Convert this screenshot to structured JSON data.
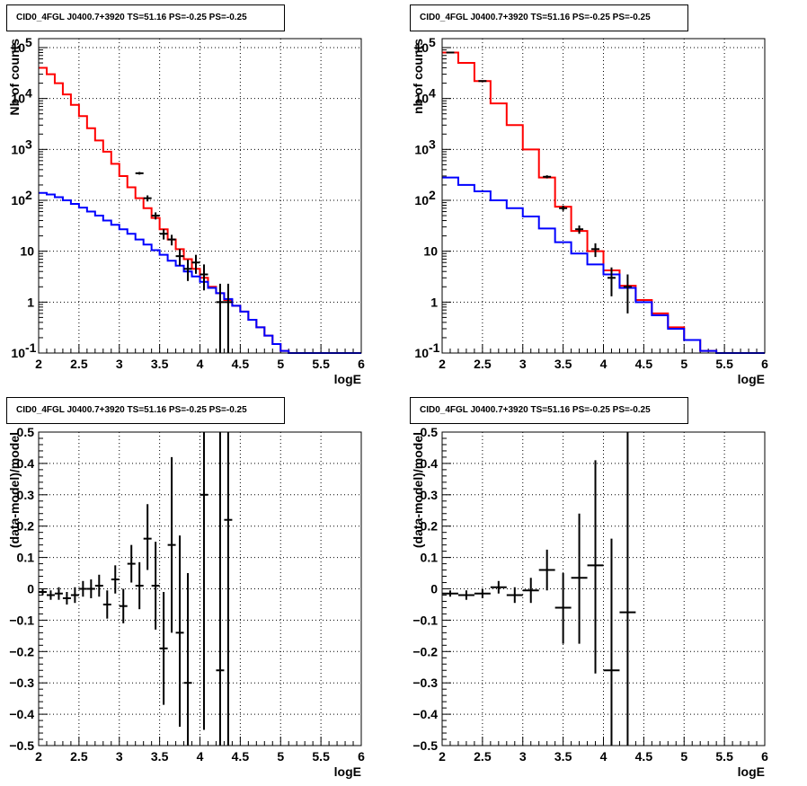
{
  "chart_data": [
    {
      "type": "line",
      "title": "CID0_4FGL J0400.7+3920 TS=51.16 PS=-0.25 PS=-0.25",
      "xlabel": "logE",
      "ylabel": "Nb of counts",
      "log_y": true,
      "xlim": [
        2,
        6
      ],
      "ylim": [
        0.1,
        150000
      ],
      "x_ticks": [
        "2",
        "2.5",
        "3",
        "3.5",
        "4",
        "4.5",
        "5",
        "5.5",
        "6"
      ],
      "y_ticks": [
        {
          "value": 0.1,
          "label": "10",
          "exp": "-1"
        },
        {
          "value": 1,
          "label": "1",
          "exp": ""
        },
        {
          "value": 10,
          "label": "10",
          "exp": ""
        },
        {
          "value": 100,
          "label": "10",
          "exp": "2"
        },
        {
          "value": 1000,
          "label": "10",
          "exp": "3"
        },
        {
          "value": 10000,
          "label": "10",
          "exp": "4"
        },
        {
          "value": 100000,
          "label": "10",
          "exp": "5"
        }
      ],
      "grid": true,
      "bin_edges": [
        2.0,
        2.1,
        2.2,
        2.3,
        2.4,
        2.5,
        2.6,
        2.7,
        2.8,
        2.9,
        3.0,
        3.1,
        3.2,
        3.3,
        3.4,
        3.5,
        3.6,
        3.7,
        3.8,
        3.9,
        4.0,
        4.1,
        4.2,
        4.3,
        4.4,
        4.5,
        4.6,
        4.7,
        4.8,
        4.9,
        5.0,
        5.1,
        5.2,
        5.3,
        5.4,
        5.5,
        5.6,
        5.7,
        5.8,
        5.9,
        6.0
      ],
      "series": [
        {
          "color": "#ff0000",
          "style": "hist",
          "values": [
            40000,
            30000,
            20000,
            12000,
            7500,
            4500,
            2600,
            1500,
            900,
            520,
            300,
            180,
            110,
            70,
            45,
            27,
            17,
            11,
            7,
            4.5,
            3,
            2,
            1.5,
            1.1,
            0.85,
            0.65,
            0.45,
            0.32,
            0.22,
            0.15,
            0.11,
            0.1,
            0.1,
            0.1,
            0.1,
            0.1,
            0.1,
            0.1,
            0.1,
            0.1
          ]
        },
        {
          "color": "#0000ff",
          "style": "hist",
          "values": [
            140,
            130,
            115,
            100,
            85,
            72,
            60,
            50,
            40,
            33,
            27,
            22,
            17,
            13.5,
            10.5,
            8.5,
            6.5,
            5.2,
            4,
            3.2,
            2.5,
            1.9,
            1.5,
            1.15,
            0.85,
            0.65,
            0.45,
            0.32,
            0.22,
            0.15,
            0.11,
            0.1,
            0.1,
            0.1,
            0.1,
            0.1,
            0.1,
            0.1,
            0.1,
            0.1
          ]
        },
        {
          "color": "#000000",
          "style": "errorbar",
          "points": [
            {
              "x": 3.25,
              "y": 340,
              "lo": 320,
              "hi": 360
            },
            {
              "x": 3.35,
              "y": 110,
              "lo": 95,
              "hi": 125
            },
            {
              "x": 3.45,
              "y": 50,
              "lo": 42,
              "hi": 58
            },
            {
              "x": 3.55,
              "y": 22,
              "lo": 17,
              "hi": 27
            },
            {
              "x": 3.65,
              "y": 17,
              "lo": 13,
              "hi": 21
            },
            {
              "x": 3.75,
              "y": 8,
              "lo": 5.2,
              "hi": 11
            },
            {
              "x": 3.85,
              "y": 4.5,
              "lo": 2.6,
              "hi": 6.8
            },
            {
              "x": 3.95,
              "y": 6,
              "lo": 3.6,
              "hi": 8.5
            },
            {
              "x": 4.05,
              "y": 3.5,
              "lo": 1.7,
              "hi": 5.5
            },
            {
              "x": 4.25,
              "y": 1,
              "lo": 0.1,
              "hi": 2.3
            },
            {
              "x": 4.35,
              "y": 1,
              "lo": 0.1,
              "hi": 2.3
            }
          ]
        }
      ]
    },
    {
      "type": "line",
      "title": "CID0_4FGL J0400.7+3920 TS=51.16 PS=-0.25 PS=-0.25",
      "xlabel": "logE",
      "ylabel": "nb of counts",
      "log_y": true,
      "xlim": [
        2,
        6
      ],
      "ylim": [
        0.1,
        150000
      ],
      "x_ticks": [
        "2",
        "2.5",
        "3",
        "3.5",
        "4",
        "4.5",
        "5",
        "5.5",
        "6"
      ],
      "y_ticks": [
        {
          "value": 0.1,
          "label": "10",
          "exp": "-1"
        },
        {
          "value": 1,
          "label": "1",
          "exp": ""
        },
        {
          "value": 10,
          "label": "10",
          "exp": ""
        },
        {
          "value": 100,
          "label": "10",
          "exp": "2"
        },
        {
          "value": 1000,
          "label": "10",
          "exp": "3"
        },
        {
          "value": 10000,
          "label": "10",
          "exp": "4"
        },
        {
          "value": 100000,
          "label": "10",
          "exp": "5"
        }
      ],
      "grid": true,
      "bin_edges": [
        2.0,
        2.2,
        2.4,
        2.6,
        2.8,
        3.0,
        3.2,
        3.4,
        3.6,
        3.8,
        4.0,
        4.2,
        4.4,
        4.6,
        4.8,
        5.0,
        5.2,
        5.4,
        5.6,
        5.8,
        6.0
      ],
      "series": [
        {
          "color": "#ff0000",
          "style": "hist",
          "values": [
            80000,
            50000,
            22000,
            8000,
            3000,
            1000,
            280,
            75,
            25,
            10,
            4.2,
            2.1,
            1.1,
            0.6,
            0.32,
            0.18,
            0.11,
            0.1,
            0.1,
            0.1
          ]
        },
        {
          "color": "#0000ff",
          "style": "hist",
          "values": [
            280,
            200,
            150,
            100,
            70,
            48,
            28,
            15,
            9,
            5.5,
            3.5,
            1.9,
            1.0,
            0.55,
            0.3,
            0.18,
            0.11,
            0.1,
            0.1,
            0.1
          ]
        },
        {
          "color": "#000000",
          "style": "errorbar",
          "points": [
            {
              "x": 2.1,
              "y": 80000,
              "lo": 79000,
              "hi": 81000
            },
            {
              "x": 2.5,
              "y": 22000,
              "lo": 21500,
              "hi": 22500
            },
            {
              "x": 3.3,
              "y": 290,
              "lo": 270,
              "hi": 310
            },
            {
              "x": 3.5,
              "y": 70,
              "lo": 62,
              "hi": 79
            },
            {
              "x": 3.7,
              "y": 27,
              "lo": 22,
              "hi": 32
            },
            {
              "x": 3.9,
              "y": 11,
              "lo": 7.7,
              "hi": 14.3
            },
            {
              "x": 4.1,
              "y": 3,
              "lo": 1.3,
              "hi": 4.8
            },
            {
              "x": 4.3,
              "y": 2,
              "lo": 0.6,
              "hi": 3.5
            }
          ]
        }
      ]
    },
    {
      "type": "scatter",
      "title": "CID0_4FGL J0400.7+3920 TS=51.16 PS=-0.25 PS=-0.25",
      "xlabel": "logE",
      "ylabel": "(data-model)/model",
      "log_y": false,
      "xlim": [
        2,
        6
      ],
      "ylim": [
        -0.5,
        0.5
      ],
      "x_ticks": [
        "2",
        "2.5",
        "3",
        "3.5",
        "4",
        "4.5",
        "5",
        "5.5",
        "6"
      ],
      "y_ticks": [
        {
          "value": -0.5,
          "label": "−0.5",
          "exp": ""
        },
        {
          "value": -0.4,
          "label": "−0.4",
          "exp": ""
        },
        {
          "value": -0.3,
          "label": "−0.3",
          "exp": ""
        },
        {
          "value": -0.2,
          "label": "−0.2",
          "exp": ""
        },
        {
          "value": -0.1,
          "label": "−0.1",
          "exp": ""
        },
        {
          "value": 0,
          "label": "0",
          "exp": ""
        },
        {
          "value": 0.1,
          "label": "0.1",
          "exp": ""
        },
        {
          "value": 0.2,
          "label": "0.2",
          "exp": ""
        },
        {
          "value": 0.3,
          "label": "0.3",
          "exp": ""
        },
        {
          "value": 0.4,
          "label": "0.4",
          "exp": ""
        },
        {
          "value": 0.5,
          "label": "0.5",
          "exp": ""
        }
      ],
      "grid": true,
      "series": [
        {
          "color": "#000000",
          "style": "errorbar",
          "xerr": 0.05,
          "points": [
            {
              "x": 2.05,
              "y": -0.01,
              "lo": -0.02,
              "hi": 0.0
            },
            {
              "x": 2.15,
              "y": -0.02,
              "lo": -0.035,
              "hi": -0.005
            },
            {
              "x": 2.25,
              "y": -0.015,
              "lo": -0.035,
              "hi": 0.005
            },
            {
              "x": 2.35,
              "y": -0.03,
              "lo": -0.05,
              "hi": -0.01
            },
            {
              "x": 2.45,
              "y": -0.02,
              "lo": -0.045,
              "hi": 0.005
            },
            {
              "x": 2.55,
              "y": 0.0,
              "lo": -0.025,
              "hi": 0.025
            },
            {
              "x": 2.65,
              "y": 0.0,
              "lo": -0.03,
              "hi": 0.03
            },
            {
              "x": 2.75,
              "y": 0.01,
              "lo": -0.025,
              "hi": 0.045
            },
            {
              "x": 2.85,
              "y": -0.05,
              "lo": -0.095,
              "hi": -0.005
            },
            {
              "x": 2.95,
              "y": 0.03,
              "lo": -0.015,
              "hi": 0.075
            },
            {
              "x": 3.05,
              "y": -0.055,
              "lo": -0.11,
              "hi": 0.0
            },
            {
              "x": 3.15,
              "y": 0.08,
              "lo": 0.02,
              "hi": 0.14
            },
            {
              "x": 3.25,
              "y": 0.01,
              "lo": -0.065,
              "hi": 0.085
            },
            {
              "x": 3.35,
              "y": 0.16,
              "lo": 0.06,
              "hi": 0.27
            },
            {
              "x": 3.45,
              "y": 0.01,
              "lo": -0.13,
              "hi": 0.15
            },
            {
              "x": 3.55,
              "y": -0.19,
              "lo": -0.37,
              "hi": -0.01
            },
            {
              "x": 3.65,
              "y": 0.14,
              "lo": -0.14,
              "hi": 0.42
            },
            {
              "x": 3.75,
              "y": -0.14,
              "lo": -0.44,
              "hi": 0.17
            },
            {
              "x": 3.85,
              "y": -0.3,
              "lo": -0.65,
              "hi": 0.05
            },
            {
              "x": 4.05,
              "y": 0.3,
              "lo": -0.45,
              "hi": 1.0
            },
            {
              "x": 4.25,
              "y": -0.26,
              "lo": -1.0,
              "hi": 1.0
            },
            {
              "x": 4.35,
              "y": 0.22,
              "lo": -1.0,
              "hi": 1.0
            }
          ]
        }
      ]
    },
    {
      "type": "scatter",
      "title": "CID0_4FGL J0400.7+3920 TS=51.16 PS=-0.25 PS=-0.25",
      "xlabel": "logE",
      "ylabel": "(data-model)/model",
      "log_y": false,
      "xlim": [
        2,
        6
      ],
      "ylim": [
        -0.5,
        0.5
      ],
      "x_ticks": [
        "2",
        "2.5",
        "3",
        "3.5",
        "4",
        "4.5",
        "5",
        "5.5",
        "6"
      ],
      "y_ticks": [
        {
          "value": -0.5,
          "label": "−0.5",
          "exp": ""
        },
        {
          "value": -0.4,
          "label": "−0.4",
          "exp": ""
        },
        {
          "value": -0.3,
          "label": "−0.3",
          "exp": ""
        },
        {
          "value": -0.2,
          "label": "−0.2",
          "exp": ""
        },
        {
          "value": -0.1,
          "label": "−0.1",
          "exp": ""
        },
        {
          "value": 0,
          "label": "0",
          "exp": ""
        },
        {
          "value": 0.1,
          "label": "0.1",
          "exp": ""
        },
        {
          "value": 0.2,
          "label": "0.2",
          "exp": ""
        },
        {
          "value": 0.3,
          "label": "0.3",
          "exp": ""
        },
        {
          "value": 0.4,
          "label": "0.4",
          "exp": ""
        },
        {
          "value": 0.5,
          "label": "0.5",
          "exp": ""
        }
      ],
      "grid": true,
      "series": [
        {
          "color": "#000000",
          "style": "errorbar",
          "xerr": 0.1,
          "points": [
            {
              "x": 2.1,
              "y": -0.015,
              "lo": -0.025,
              "hi": -0.005
            },
            {
              "x": 2.3,
              "y": -0.02,
              "lo": -0.035,
              "hi": -0.005
            },
            {
              "x": 2.5,
              "y": -0.015,
              "lo": -0.03,
              "hi": 0.0
            },
            {
              "x": 2.7,
              "y": 0.005,
              "lo": -0.015,
              "hi": 0.025
            },
            {
              "x": 2.9,
              "y": -0.02,
              "lo": -0.045,
              "hi": 0.005
            },
            {
              "x": 3.1,
              "y": -0.005,
              "lo": -0.045,
              "hi": 0.035
            },
            {
              "x": 3.3,
              "y": 0.06,
              "lo": -0.005,
              "hi": 0.125
            },
            {
              "x": 3.5,
              "y": -0.06,
              "lo": -0.175,
              "hi": 0.05
            },
            {
              "x": 3.7,
              "y": 0.035,
              "lo": -0.175,
              "hi": 0.24
            },
            {
              "x": 3.9,
              "y": 0.075,
              "lo": -0.27,
              "hi": 0.41
            },
            {
              "x": 4.1,
              "y": -0.26,
              "lo": -0.5,
              "hi": 0.16
            },
            {
              "x": 4.3,
              "y": -0.075,
              "lo": -0.5,
              "hi": 0.5
            }
          ]
        }
      ]
    }
  ]
}
